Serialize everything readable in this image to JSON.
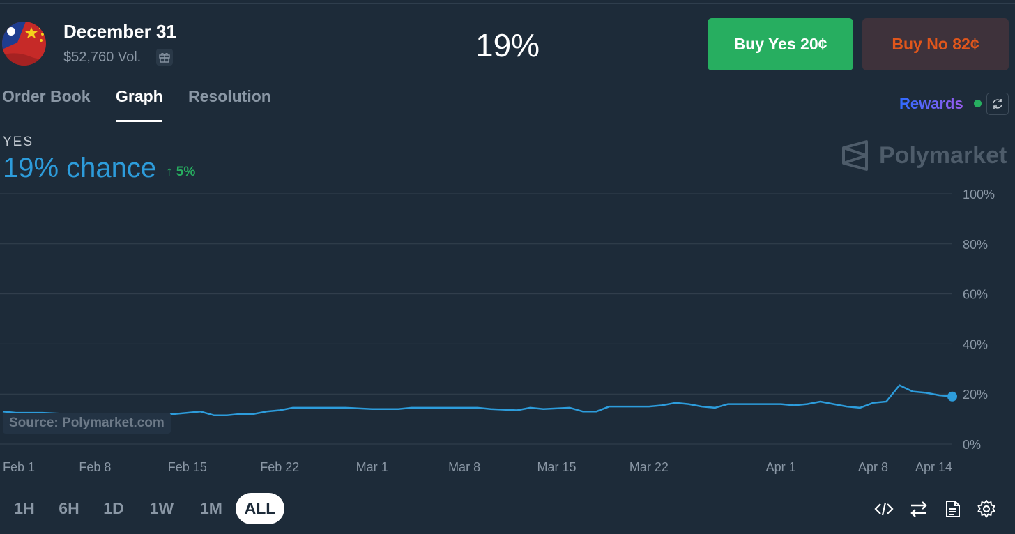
{
  "header": {
    "title": "December 31",
    "volume": "$52,760 Vol.",
    "current_pct": "19%",
    "buy_yes_label": "Buy Yes 20¢",
    "buy_no_label": "Buy No 82¢",
    "avatar_icon": "taiwan-china-flag-icon",
    "gift_icon": "gift-icon"
  },
  "tabs": [
    {
      "label": "Order Book",
      "active": false
    },
    {
      "label": "Graph",
      "active": true
    },
    {
      "label": "Resolution",
      "active": false
    }
  ],
  "rewards": {
    "label": "Rewards",
    "status_color": "#27ae60"
  },
  "summary": {
    "outcome": "YES",
    "chance": "19% chance",
    "change": "↑ 5%"
  },
  "watermark": "Polymarket",
  "source": "Source: Polymarket.com",
  "colors": {
    "background": "#1d2b39",
    "accent_blue": "#2d9cdb",
    "yes_green": "#27ae60",
    "no_orange": "#e0561c"
  },
  "chart_data": {
    "type": "line",
    "x_tick_labels": [
      "Feb 1",
      "Feb 8",
      "Feb 15",
      "Feb 22",
      "Mar 1",
      "Mar 8",
      "Mar 15",
      "Mar 22",
      "Apr 1",
      "Apr 8",
      "Apr 14"
    ],
    "y_tick_labels": [
      "100%",
      "80%",
      "60%",
      "40%",
      "20%",
      "0%"
    ],
    "ylim": [
      0,
      100
    ],
    "grid": true,
    "series": [
      {
        "color": "#2d9cdb",
        "points": [
          [
            "2025-02-01",
            13
          ],
          [
            "2025-02-02",
            12.5
          ],
          [
            "2025-02-04",
            12.5
          ],
          [
            "2025-02-06",
            12
          ],
          [
            "2025-02-10",
            12
          ],
          [
            "2025-02-14",
            12
          ],
          [
            "2025-02-15",
            12.5
          ],
          [
            "2025-02-16",
            13
          ],
          [
            "2025-02-17",
            11.5
          ],
          [
            "2025-02-18",
            11.5
          ],
          [
            "2025-02-19",
            12
          ],
          [
            "2025-02-20",
            12
          ],
          [
            "2025-02-21",
            13
          ],
          [
            "2025-02-22",
            13.5
          ],
          [
            "2025-02-23",
            14.5
          ],
          [
            "2025-02-24",
            14.5
          ],
          [
            "2025-02-27",
            14.5
          ],
          [
            "2025-03-01",
            14
          ],
          [
            "2025-03-03",
            14
          ],
          [
            "2025-03-04",
            14.5
          ],
          [
            "2025-03-06",
            14.5
          ],
          [
            "2025-03-09",
            14.5
          ],
          [
            "2025-03-10",
            14
          ],
          [
            "2025-03-12",
            13.5
          ],
          [
            "2025-03-13",
            14.5
          ],
          [
            "2025-03-14",
            14
          ],
          [
            "2025-03-16",
            14.5
          ],
          [
            "2025-03-17",
            13
          ],
          [
            "2025-03-18",
            13
          ],
          [
            "2025-03-19",
            15
          ],
          [
            "2025-03-22",
            15
          ],
          [
            "2025-03-23",
            15.5
          ],
          [
            "2025-03-24",
            16.5
          ],
          [
            "2025-03-25",
            16
          ],
          [
            "2025-03-26",
            15
          ],
          [
            "2025-03-27",
            14.5
          ],
          [
            "2025-03-28",
            16
          ],
          [
            "2025-03-30",
            16
          ],
          [
            "2025-04-01",
            16
          ],
          [
            "2025-04-02",
            15.5
          ],
          [
            "2025-04-03",
            16
          ],
          [
            "2025-04-04",
            17
          ],
          [
            "2025-04-05",
            16
          ],
          [
            "2025-04-06",
            15
          ],
          [
            "2025-04-07",
            14.5
          ],
          [
            "2025-04-08",
            16.5
          ],
          [
            "2025-04-09",
            17
          ],
          [
            "2025-04-10",
            23.5
          ],
          [
            "2025-04-11",
            21
          ],
          [
            "2025-04-12",
            20.5
          ],
          [
            "2025-04-13",
            19.5
          ],
          [
            "2025-04-14",
            19
          ]
        ]
      }
    ]
  },
  "range_buttons": [
    {
      "label": "1H",
      "active": false
    },
    {
      "label": "6H",
      "active": false
    },
    {
      "label": "1D",
      "active": false
    },
    {
      "label": "1W",
      "active": false
    },
    {
      "label": "1M",
      "active": false
    },
    {
      "label": "ALL",
      "active": true
    }
  ],
  "tools": [
    "embed-code-icon",
    "swap-arrows-icon",
    "document-icon",
    "settings-gear-icon"
  ]
}
